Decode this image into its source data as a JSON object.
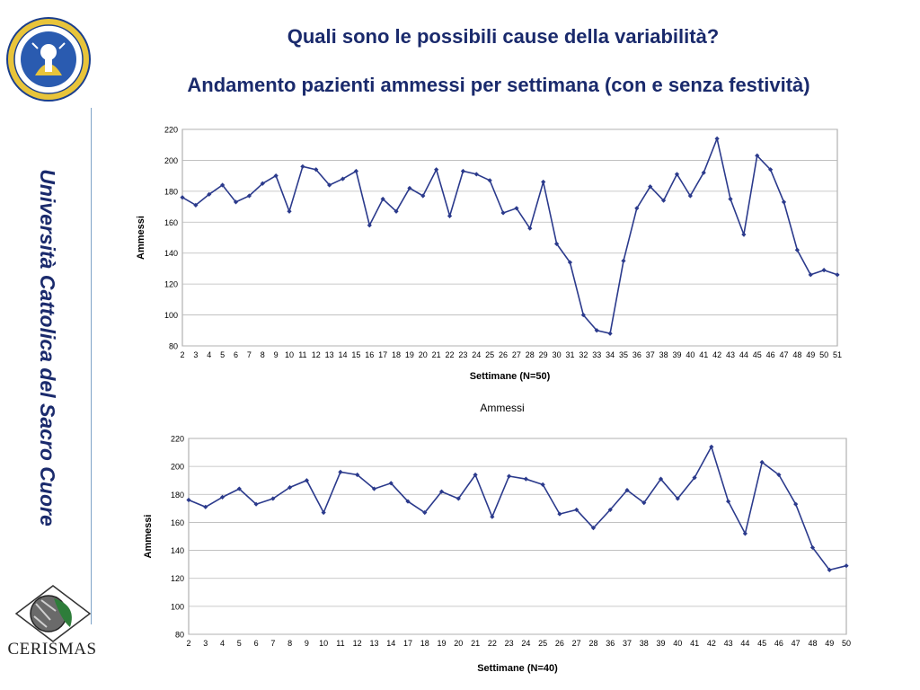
{
  "header": {
    "title": "Quali sono le possibili cause della variabilità?",
    "subtitle": "Andamento pazienti ammessi per settimana (con e senza festività)"
  },
  "sidebar": {
    "university": "Università Cattolica del Sacro Cuore",
    "logo_bottom_text": "CERISMAS",
    "seal_text": "UNIVERSITAS CATHOLICA SACRI CORDIS IESU MEDIOLANI"
  },
  "colors": {
    "title": "#1a2a6c",
    "series": "#2b3a8c",
    "sidebar_line": "#7fa4c8"
  },
  "chart_data": [
    {
      "type": "line",
      "title": "",
      "xlabel": "Settimane (N=50)",
      "ylabel": "Ammessi",
      "ylim": [
        80,
        220
      ],
      "yticks": [
        80,
        100,
        120,
        140,
        160,
        180,
        200,
        220
      ],
      "grid": true,
      "categories": [
        "2",
        "3",
        "4",
        "5",
        "6",
        "7",
        "8",
        "9",
        "10",
        "11",
        "12",
        "13",
        "14",
        "15",
        "16",
        "17",
        "18",
        "19",
        "20",
        "21",
        "22",
        "23",
        "24",
        "25",
        "26",
        "27",
        "28",
        "29",
        "30",
        "31",
        "32",
        "33",
        "34",
        "35",
        "36",
        "37",
        "38",
        "39",
        "40",
        "41",
        "42",
        "43",
        "44",
        "45",
        "46",
        "47",
        "48",
        "49",
        "50",
        "51"
      ],
      "series": [
        {
          "values": [
            176,
            171,
            178,
            184,
            173,
            177,
            185,
            190,
            167,
            196,
            194,
            184,
            188,
            193,
            158,
            175,
            167,
            182,
            177,
            194,
            164,
            193,
            191,
            187,
            166,
            169,
            156,
            186,
            146,
            134,
            100,
            90,
            88,
            135,
            169,
            183,
            174,
            191,
            177,
            192,
            214,
            175,
            152,
            203,
            194,
            173,
            142,
            126,
            129,
            126
          ]
        }
      ]
    },
    {
      "type": "line",
      "title": "Ammessi",
      "xlabel": "Settimane (N=40)",
      "ylabel": "Ammessi",
      "ylim": [
        80,
        220
      ],
      "yticks": [
        80,
        100,
        120,
        140,
        160,
        180,
        200,
        220
      ],
      "grid": true,
      "categories": [
        "2",
        "3",
        "4",
        "5",
        "6",
        "7",
        "8",
        "9",
        "10",
        "11",
        "12",
        "13",
        "14",
        "17",
        "18",
        "19",
        "20",
        "21",
        "22",
        "23",
        "24",
        "25",
        "26",
        "27",
        "28",
        "36",
        "37",
        "38",
        "39",
        "40",
        "41",
        "42",
        "43",
        "44",
        "45",
        "46",
        "47",
        "48",
        "49",
        "50"
      ],
      "series": [
        {
          "values": [
            176,
            171,
            178,
            184,
            173,
            177,
            185,
            190,
            167,
            196,
            194,
            184,
            188,
            175,
            167,
            182,
            177,
            194,
            164,
            193,
            191,
            187,
            166,
            169,
            156,
            169,
            183,
            174,
            191,
            177,
            192,
            214,
            175,
            152,
            203,
            194,
            173,
            142,
            126,
            129
          ]
        }
      ]
    }
  ]
}
